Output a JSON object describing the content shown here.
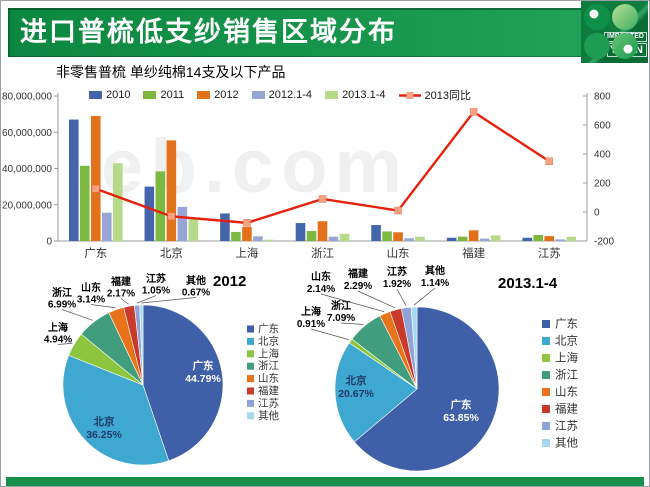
{
  "slide": {
    "title": "进口普梳低支纱销售区域分布",
    "subtitle": "非零售普梳 单纱纯棉14支及以下产品",
    "logo": {
      "line1": "IMPORTED",
      "line2": "YARN"
    },
    "watermark": "eb.com",
    "accent_green": "#16944b",
    "accent_green_dark": "#0a6b34"
  },
  "chart_data": [
    {
      "type": "bar",
      "title": "",
      "categories": [
        "广东",
        "北京",
        "上海",
        "浙江",
        "山东",
        "福建",
        "江苏"
      ],
      "series": [
        {
          "name": "2010",
          "kind": "bar",
          "color": "#4565ab",
          "values": [
            67000000,
            30000000,
            15200000,
            9900000,
            8800000,
            1800000,
            1800000
          ]
        },
        {
          "name": "2011",
          "kind": "bar",
          "color": "#7db840",
          "values": [
            41500000,
            38400000,
            5000000,
            5500000,
            5300000,
            2400000,
            3300000
          ]
        },
        {
          "name": "2012",
          "kind": "bar",
          "color": "#e2711b",
          "values": [
            69000000,
            55500000,
            7700000,
            10900000,
            4800000,
            5900000,
            2700000
          ]
        },
        {
          "name": "2012.1-4",
          "kind": "bar",
          "color": "#98a6d5",
          "values": [
            15600000,
            18800000,
            2600000,
            2400000,
            1500000,
            1300000,
            900000
          ]
        },
        {
          "name": "2013.1-4",
          "kind": "bar",
          "color": "#b6da8a",
          "values": [
            42900000,
            12800000,
            700000,
            4000000,
            2400000,
            3100000,
            2400000
          ]
        },
        {
          "name": "2013同比",
          "kind": "line",
          "axis": "right",
          "color": "#e8210d",
          "marker_color": "#f5a283",
          "values": [
            160,
            -30,
            -75,
            90,
            10,
            690,
            350
          ]
        }
      ],
      "left_axis": {
        "min": 0,
        "max": 80000000,
        "tick_labels": [
          "0",
          "20,000,000",
          "40,000,000",
          "60,000,000",
          "80,000,000"
        ]
      },
      "right_axis": {
        "min": -200,
        "max": 800,
        "tick_labels": [
          "-200",
          "0",
          "200",
          "400",
          "600",
          "800"
        ]
      },
      "legend_position": "top",
      "grid": false
    },
    {
      "type": "pie",
      "title": "2012",
      "labels": [
        "广东",
        "北京",
        "上海",
        "浙江",
        "山东",
        "福建",
        "江苏",
        "其他"
      ],
      "values": [
        44.79,
        36.25,
        4.94,
        6.99,
        3.14,
        2.17,
        1.05,
        0.67
      ],
      "colors": [
        "#3f5fa8",
        "#3fa8d0",
        "#8cc63f",
        "#419d7d",
        "#e8731a",
        "#c93a2a",
        "#8fa3d8",
        "#a8d8f0"
      ],
      "legend_position": "right"
    },
    {
      "type": "pie",
      "title": "2013.1-4",
      "labels": [
        "广东",
        "北京",
        "上海",
        "浙江",
        "山东",
        "福建",
        "江苏",
        "其他"
      ],
      "values": [
        63.85,
        20.67,
        0.91,
        7.09,
        2.14,
        2.29,
        1.92,
        1.14
      ],
      "colors": [
        "#3f5fa8",
        "#3fa8d0",
        "#8cc63f",
        "#419d7d",
        "#e8731a",
        "#c93a2a",
        "#8fa3d8",
        "#a8d8f0"
      ],
      "legend_position": "right"
    }
  ]
}
